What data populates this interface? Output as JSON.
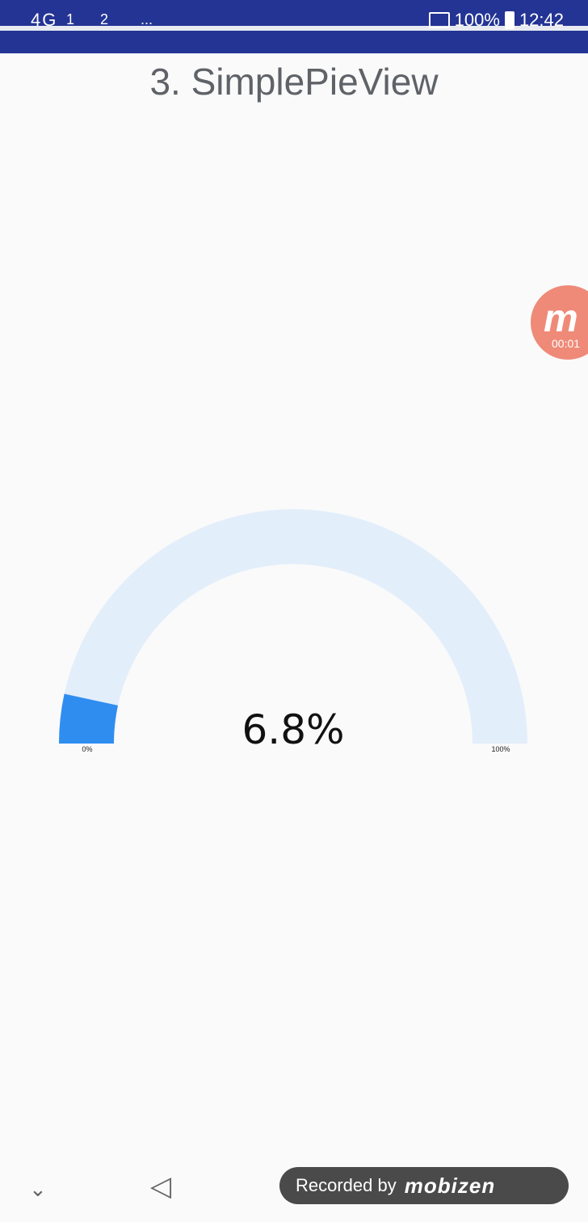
{
  "status_bar": {
    "left_icons": "4G",
    "sim1_badge": "1",
    "sim2_badge": "2",
    "dots": "...",
    "battery": "100%",
    "time": "12:42"
  },
  "page": {
    "title": "3. SimplePieView"
  },
  "overlay": {
    "brand": "m",
    "timer": "00:01"
  },
  "chart_data": {
    "type": "pie",
    "style": "semicircle-gauge",
    "value_percent": 6.8,
    "center_label": "6.8%",
    "min_label": "0%",
    "max_label": "100%",
    "fill_color": "#2f8df0",
    "track_color": "#e3eefb"
  },
  "nav": {
    "down_icon": "chevron-down-icon",
    "back_icon": "back-triangle-icon"
  },
  "recording": {
    "label": "Recorded by",
    "brand": "mobizen"
  }
}
